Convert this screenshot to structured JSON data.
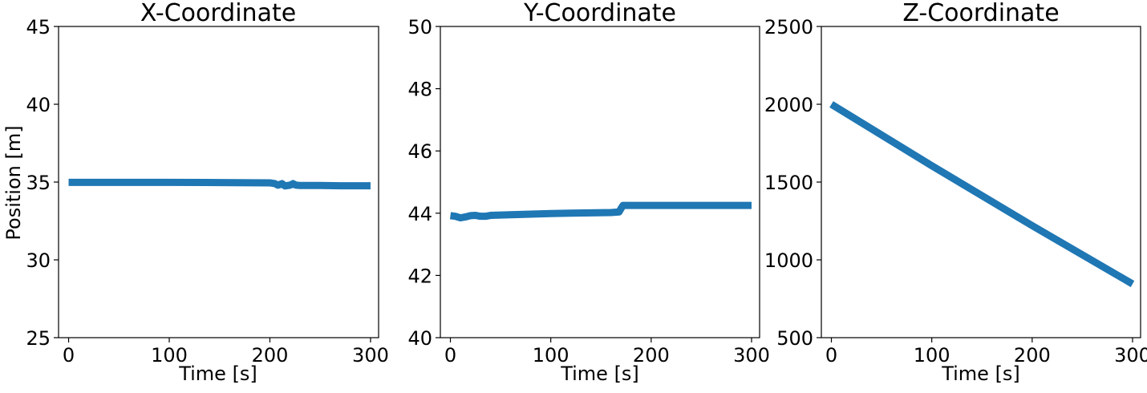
{
  "figure": {
    "line_color": "#1f77b4",
    "charts_count": 3
  },
  "chart_data": [
    {
      "type": "line",
      "title": "X-Coordinate",
      "xlabel": "Time [s]",
      "ylabel": "Position [m]",
      "xlim": [
        -10,
        308
      ],
      "ylim": [
        25,
        45
      ],
      "xticks": [
        0,
        100,
        200,
        300
      ],
      "yticks": [
        25,
        30,
        35,
        40,
        45
      ],
      "grid": false,
      "series": [
        {
          "x": [
            0,
            50,
            100,
            150,
            200,
            205,
            208,
            212,
            215,
            220,
            223,
            226,
            230,
            250,
            270,
            300
          ],
          "y": [
            34.98,
            34.98,
            34.98,
            34.97,
            34.95,
            34.9,
            34.8,
            34.9,
            34.75,
            34.8,
            34.9,
            34.8,
            34.78,
            34.78,
            34.76,
            34.76
          ]
        }
      ]
    },
    {
      "type": "line",
      "title": "Y-Coordinate",
      "xlabel": "Time [s]",
      "ylabel": "",
      "xlim": [
        -10,
        308
      ],
      "ylim": [
        40,
        50
      ],
      "xticks": [
        0,
        100,
        200,
        300
      ],
      "yticks": [
        40,
        42,
        44,
        46,
        48,
        50
      ],
      "grid": false,
      "series": [
        {
          "x": [
            0,
            5,
            10,
            15,
            20,
            25,
            30,
            35,
            40,
            50,
            60,
            80,
            100,
            120,
            140,
            160,
            168,
            170,
            172,
            200,
            250,
            300
          ],
          "y": [
            43.92,
            43.9,
            43.85,
            43.88,
            43.92,
            43.93,
            43.9,
            43.9,
            43.93,
            43.94,
            43.95,
            43.97,
            43.99,
            44.0,
            44.01,
            44.02,
            44.04,
            44.15,
            44.25,
            44.25,
            44.25,
            44.25
          ]
        }
      ]
    },
    {
      "type": "line",
      "title": "Z-Coordinate",
      "xlabel": "Time [s]",
      "ylabel": "",
      "xlim": [
        -10,
        308
      ],
      "ylim": [
        500,
        2500
      ],
      "xticks": [
        0,
        100,
        200,
        300
      ],
      "yticks": [
        500,
        1000,
        1500,
        2000,
        2500
      ],
      "grid": false,
      "series": [
        {
          "x": [
            0,
            100,
            200,
            300
          ],
          "y": [
            2000,
            1605,
            1220,
            845
          ]
        }
      ]
    }
  ]
}
